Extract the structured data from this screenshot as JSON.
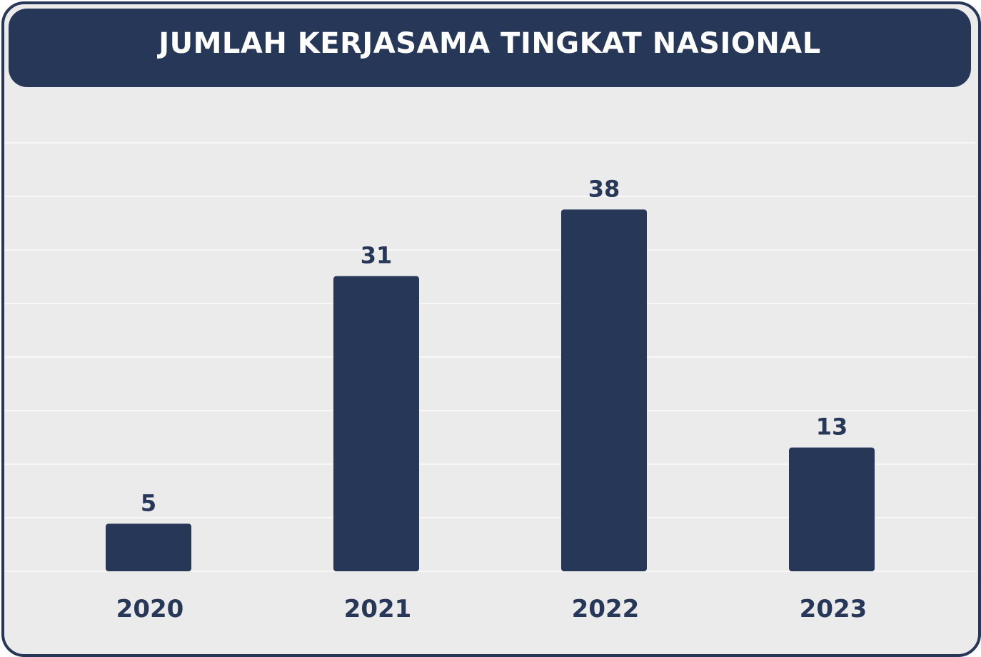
{
  "chart_data": {
    "type": "bar",
    "title": "JUMLAH KERJASAMA TINGKAT NASIONAL",
    "categories": [
      "2020",
      "2021",
      "2022",
      "2023"
    ],
    "values": [
      5,
      31,
      38,
      13
    ],
    "value_labels": [
      "5",
      "31",
      "38",
      "13"
    ],
    "xlabel": "",
    "ylabel": "",
    "ylim": [
      0,
      48
    ],
    "grid": true,
    "legend": "none",
    "colors": {
      "bar": "#273758",
      "title_background": "#273758",
      "title_text": "#ffffff",
      "background": "#ebebeb",
      "gridline": "#f7f7f7",
      "text": "#273758"
    }
  }
}
